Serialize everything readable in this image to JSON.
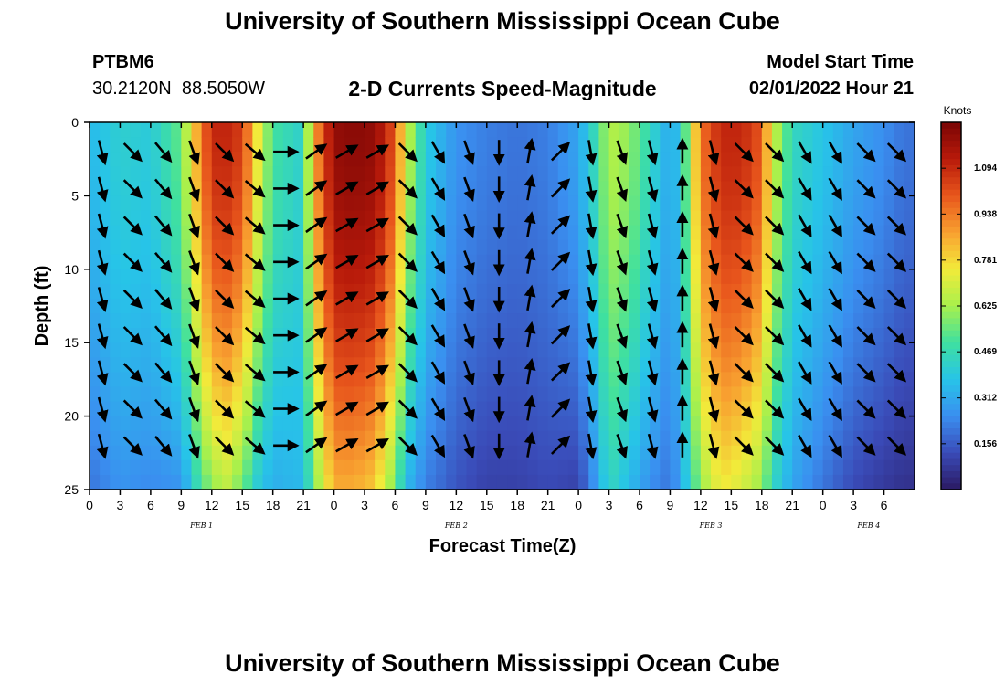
{
  "header": {
    "title": "University of Southern Mississippi Ocean Cube",
    "station": "PTBM6",
    "coords": "30.2120N  88.5050W",
    "plot_title": "2-D Currents Speed-Magnitude",
    "model_label": "Model Start Time",
    "model_time": "02/01/2022 Hour 21"
  },
  "footer": {
    "title": "University of Southern Mississippi Ocean Cube"
  },
  "colorbar": {
    "unit": "Knots",
    "ticks": [
      "1.094",
      "0.938",
      "0.781",
      "0.625",
      "0.469",
      "0.312",
      "0.156"
    ],
    "tick_values": [
      1.094,
      0.938,
      0.781,
      0.625,
      0.469,
      0.312,
      0.156
    ],
    "range": [
      0,
      1.25
    ],
    "colors": [
      "#2b1a63",
      "#3a4bb8",
      "#3a8ff0",
      "#27c4e8",
      "#3fe0a0",
      "#a8f04c",
      "#f2ea3a",
      "#f8a030",
      "#e8561c",
      "#b81a0a",
      "#7a0505"
    ]
  },
  "chart_data": {
    "type": "heatmap",
    "title": "2-D Currents Speed-Magnitude",
    "xlabel": "Forecast Time(Z)",
    "ylabel": "Depth (ft)",
    "xlim": [
      0,
      81
    ],
    "ylim": [
      25,
      0
    ],
    "x_ticks": [
      "0",
      "3",
      "6",
      "9",
      "12",
      "15",
      "18",
      "21",
      "0",
      "3",
      "6",
      "9",
      "12",
      "15",
      "18",
      "21",
      "0",
      "3",
      "6",
      "9",
      "12",
      "15",
      "18",
      "21",
      "0",
      "3",
      "6"
    ],
    "x_tick_hours": [
      0,
      3,
      6,
      9,
      12,
      15,
      18,
      21,
      24,
      27,
      30,
      33,
      36,
      39,
      42,
      45,
      48,
      51,
      54,
      57,
      60,
      63,
      66,
      69,
      72,
      75,
      78
    ],
    "y_ticks": [
      "0",
      "5",
      "10",
      "15",
      "20",
      "25"
    ],
    "y_tick_values": [
      0,
      5,
      10,
      15,
      20,
      25
    ],
    "day_labels": [
      {
        "text": "FEB 1",
        "hour": 11
      },
      {
        "text": "FEB 2",
        "hour": 36
      },
      {
        "text": "FEB 3",
        "hour": 61
      },
      {
        "text": "FEB 4",
        "hour": 76.5
      }
    ],
    "speed_profile_hours": [
      0,
      3,
      6,
      9,
      10.5,
      12,
      13.5,
      15,
      16.5,
      18,
      21,
      22,
      24,
      26,
      28,
      30,
      31,
      33,
      36,
      39,
      42,
      45,
      48,
      50,
      51,
      53,
      55,
      57,
      58,
      60,
      62,
      64,
      66,
      67,
      69,
      72,
      75,
      78,
      80,
      81
    ],
    "speed_profile_top": [
      0.35,
      0.42,
      0.4,
      0.55,
      0.85,
      1.1,
      1.1,
      1.05,
      0.75,
      0.5,
      0.42,
      0.85,
      1.2,
      1.22,
      1.2,
      1.0,
      0.7,
      0.4,
      0.26,
      0.22,
      0.2,
      0.22,
      0.3,
      0.5,
      0.65,
      0.6,
      0.45,
      0.3,
      0.4,
      0.95,
      1.1,
      1.1,
      1.0,
      0.7,
      0.45,
      0.38,
      0.3,
      0.25,
      0.2,
      0.2
    ],
    "speed_profile_bottom": [
      0.2,
      0.26,
      0.24,
      0.26,
      0.45,
      0.6,
      0.65,
      0.55,
      0.4,
      0.32,
      0.35,
      0.55,
      0.85,
      0.85,
      0.8,
      0.55,
      0.35,
      0.22,
      0.14,
      0.1,
      0.1,
      0.12,
      0.1,
      0.3,
      0.45,
      0.35,
      0.25,
      0.2,
      0.3,
      0.6,
      0.75,
      0.7,
      0.6,
      0.45,
      0.3,
      0.2,
      0.12,
      0.08,
      0.06,
      0.06
    ],
    "arrow_depths_ft": [
      2,
      4.5,
      7,
      9.5,
      12,
      14.5,
      17,
      19.5,
      22
    ],
    "arrow_hours": [
      3,
      6,
      9,
      12,
      15,
      18,
      21,
      24,
      27,
      30,
      33,
      36,
      39,
      42,
      45,
      48,
      51,
      54,
      57,
      60,
      63,
      66,
      69,
      72,
      75,
      78,
      81
    ],
    "arrow_directions_deg": [
      165,
      135,
      140,
      160,
      135,
      130,
      90,
      55,
      60,
      60,
      135,
      150,
      160,
      180,
      10,
      45,
      170,
      160,
      165,
      0,
      165,
      135,
      135,
      150,
      150,
      135,
      135
    ],
    "units": "Knots"
  }
}
